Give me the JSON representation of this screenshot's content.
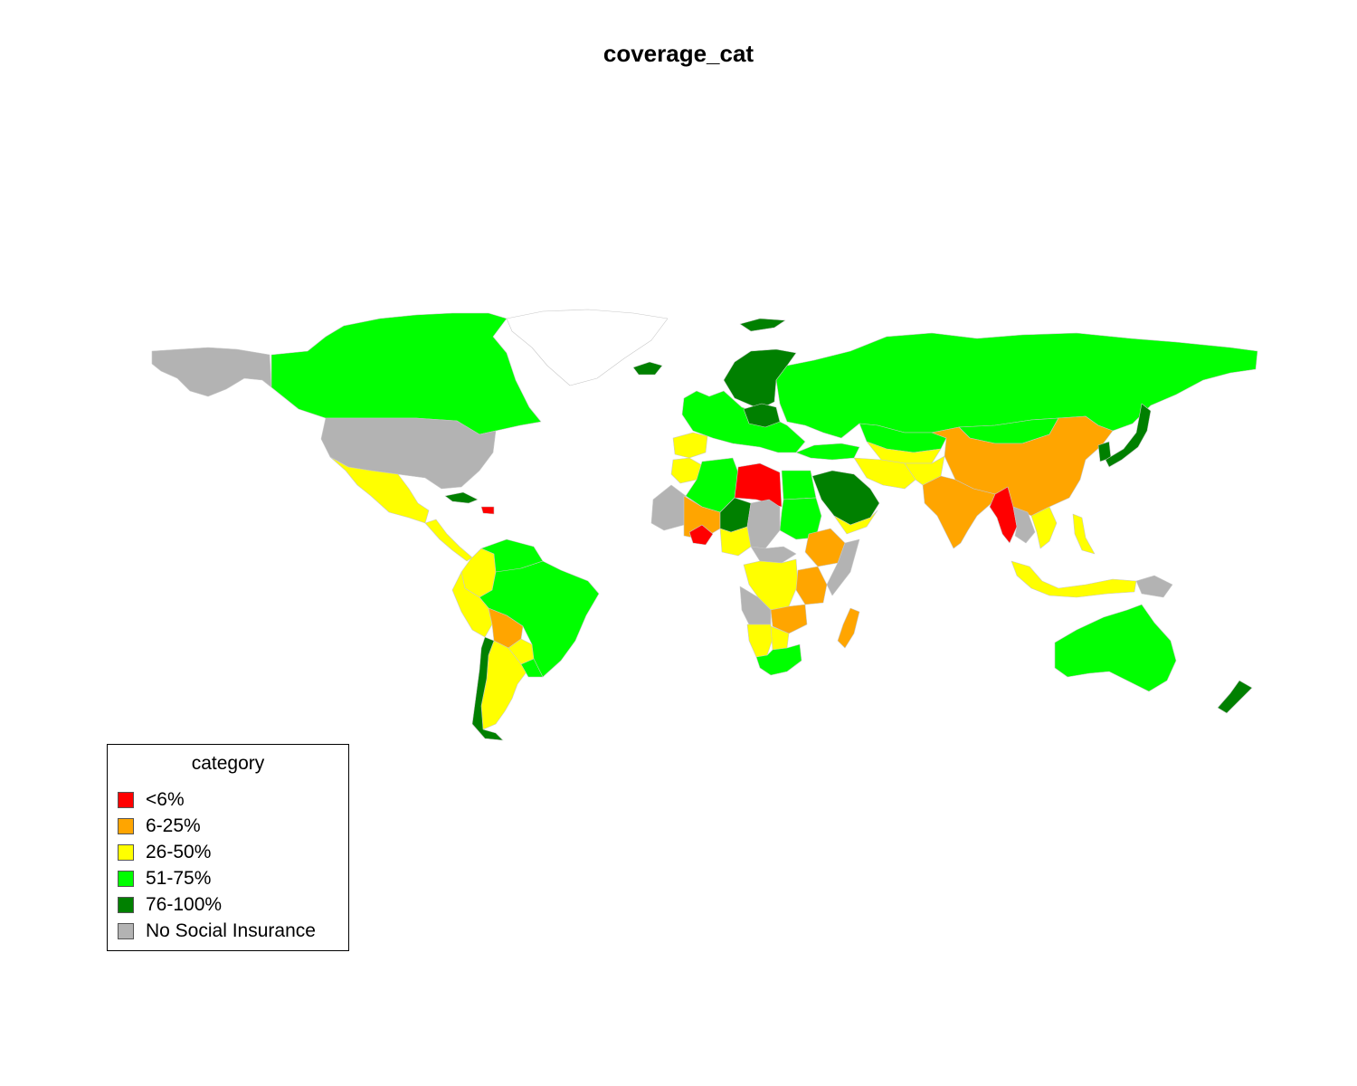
{
  "title": "coverage_cat",
  "legend": {
    "title": "category",
    "items": [
      {
        "key": "lt6",
        "label": "<6%",
        "color": "#ff0000"
      },
      {
        "key": "c6_25",
        "label": "6-25%",
        "color": "#ffa500"
      },
      {
        "key": "c26_50",
        "label": "26-50%",
        "color": "#ffff00"
      },
      {
        "key": "c51_75",
        "label": "51-75%",
        "color": "#00ff00"
      },
      {
        "key": "c76_100",
        "label": "76-100%",
        "color": "#008000"
      },
      {
        "key": "none",
        "label": "No Social Insurance",
        "color": "#b3b3b3"
      }
    ]
  },
  "nodata_color": "#ffffff",
  "regions": [
    {
      "name": "Alaska",
      "category": "none"
    },
    {
      "name": "Canada",
      "category": "c51_75"
    },
    {
      "name": "Greenland",
      "category": "nodata"
    },
    {
      "name": "United States",
      "category": "none"
    },
    {
      "name": "Mexico",
      "category": "c26_50"
    },
    {
      "name": "Central America",
      "category": "c26_50"
    },
    {
      "name": "Cuba",
      "category": "c76_100"
    },
    {
      "name": "Haiti",
      "category": "lt6"
    },
    {
      "name": "Colombia",
      "category": "c26_50"
    },
    {
      "name": "Venezuela",
      "category": "c51_75"
    },
    {
      "name": "Brazil",
      "category": "c51_75"
    },
    {
      "name": "Peru",
      "category": "c26_50"
    },
    {
      "name": "Bolivia",
      "category": "c6_25"
    },
    {
      "name": "Paraguay",
      "category": "c26_50"
    },
    {
      "name": "Argentina",
      "category": "c26_50"
    },
    {
      "name": "Chile",
      "category": "c76_100"
    },
    {
      "name": "Uruguay",
      "category": "c51_75"
    },
    {
      "name": "Iceland",
      "category": "c76_100"
    },
    {
      "name": "Svalbard",
      "category": "c76_100"
    },
    {
      "name": "Scandinavia",
      "category": "c76_100"
    },
    {
      "name": "Western Europe",
      "category": "c51_75"
    },
    {
      "name": "Central Europe",
      "category": "c76_100"
    },
    {
      "name": "Iberia",
      "category": "c26_50"
    },
    {
      "name": "Russia",
      "category": "c51_75"
    },
    {
      "name": "Kazakhstan",
      "category": "c51_75"
    },
    {
      "name": "Turkey",
      "category": "c51_75"
    },
    {
      "name": "Central Asia",
      "category": "c26_50"
    },
    {
      "name": "Iran",
      "category": "c26_50"
    },
    {
      "name": "Saudi Arabia",
      "category": "c76_100"
    },
    {
      "name": "Yemen",
      "category": "c26_50"
    },
    {
      "name": "Afghanistan",
      "category": "c26_50"
    },
    {
      "name": "China",
      "category": "c6_25"
    },
    {
      "name": "Mongolia",
      "category": "c51_75"
    },
    {
      "name": "India",
      "category": "c6_25"
    },
    {
      "name": "Myanmar",
      "category": "lt6"
    },
    {
      "name": "Thailand",
      "category": "none"
    },
    {
      "name": "Vietnam",
      "category": "c26_50"
    },
    {
      "name": "Japan",
      "category": "c76_100"
    },
    {
      "name": "Korea",
      "category": "c76_100"
    },
    {
      "name": "Philippines",
      "category": "c26_50"
    },
    {
      "name": "Indonesia",
      "category": "c26_50"
    },
    {
      "name": "Papua New Guinea",
      "category": "none"
    },
    {
      "name": "Australia",
      "category": "c51_75"
    },
    {
      "name": "New Zealand",
      "category": "c76_100"
    },
    {
      "name": "Morocco",
      "category": "c26_50"
    },
    {
      "name": "Algeria",
      "category": "c51_75"
    },
    {
      "name": "Libya",
      "category": "lt6"
    },
    {
      "name": "Egypt",
      "category": "c51_75"
    },
    {
      "name": "Sudan",
      "category": "c51_75"
    },
    {
      "name": "Mauritania",
      "category": "none"
    },
    {
      "name": "Mali",
      "category": "c6_25"
    },
    {
      "name": "Niger",
      "category": "c76_100"
    },
    {
      "name": "Chad",
      "category": "none"
    },
    {
      "name": "Burkina Faso",
      "category": "lt6"
    },
    {
      "name": "Nigeria",
      "category": "c26_50"
    },
    {
      "name": "Central African Republic",
      "category": "none"
    },
    {
      "name": "Ethiopia",
      "category": "c6_25"
    },
    {
      "name": "Somalia",
      "category": "none"
    },
    {
      "name": "DR Congo",
      "category": "c26_50"
    },
    {
      "name": "Angola",
      "category": "none"
    },
    {
      "name": "Tanzania",
      "category": "c6_25"
    },
    {
      "name": "Zambia",
      "category": "c6_25"
    },
    {
      "name": "Namibia",
      "category": "c26_50"
    },
    {
      "name": "Botswana",
      "category": "c26_50"
    },
    {
      "name": "South Africa",
      "category": "c51_75"
    },
    {
      "name": "Madagascar",
      "category": "c6_25"
    }
  ]
}
